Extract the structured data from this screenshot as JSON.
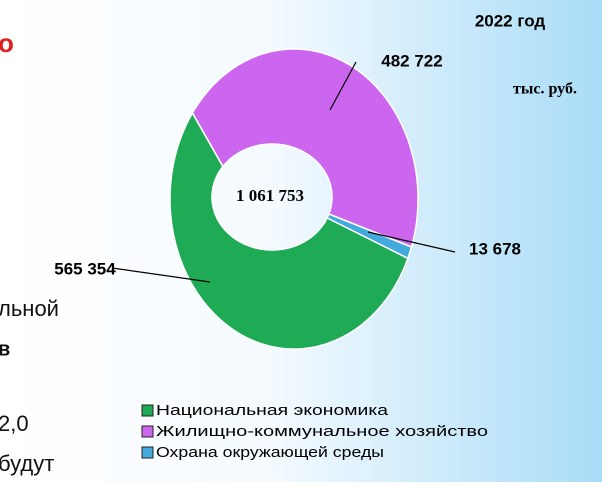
{
  "chart_data": {
    "type": "donut",
    "title": "2022 год",
    "unit": "тыс. руб.",
    "total_label": "1 061 753",
    "categories": [
      "Жилищно-коммунальное хозяйство",
      "Охрана окружающей среды",
      "Национальная экономика"
    ],
    "values": [
      482722,
      13678,
      565354
    ],
    "value_labels": [
      "482 722",
      "13 678",
      "565 354"
    ],
    "colors": [
      "#cc66ee",
      "#44aadd",
      "#1faa55"
    ],
    "legend_order": [
      2,
      0,
      1
    ]
  },
  "background_text": [
    "о",
    "льной",
    "в",
    "2,0",
    "будут"
  ]
}
